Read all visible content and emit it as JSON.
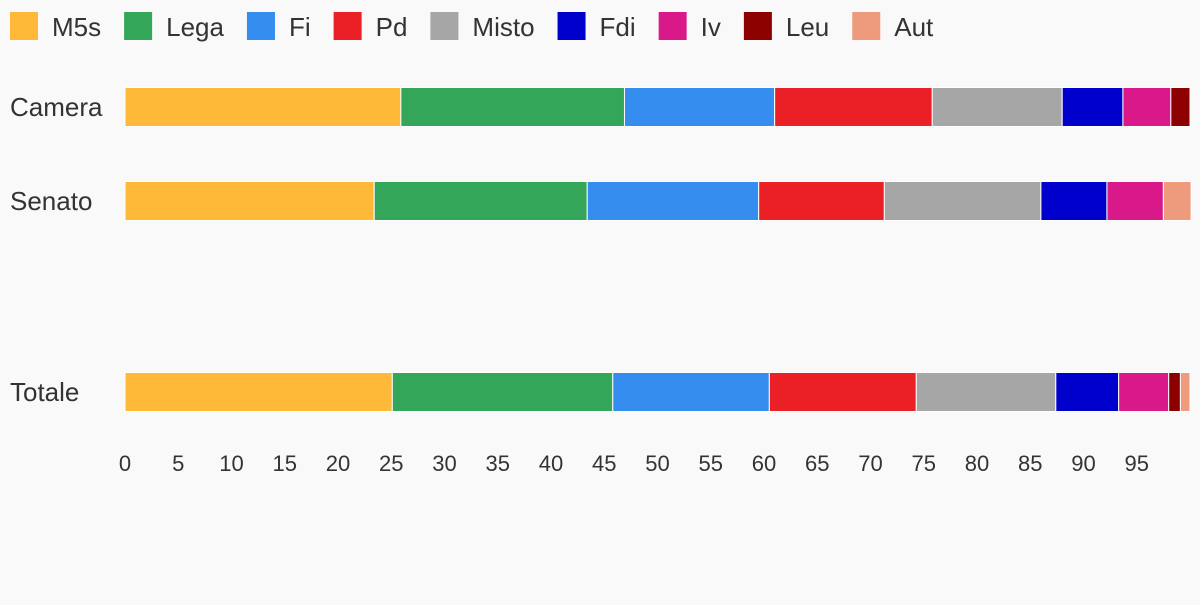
{
  "chart_data": {
    "type": "bar",
    "orientation": "horizontal",
    "stacked": true,
    "title": "",
    "xlabel": "",
    "ylabel": "",
    "categories": [
      "Camera",
      "Senato",
      "",
      "Totale"
    ],
    "xlim": [
      0,
      100
    ],
    "x_ticks": [
      0,
      5,
      10,
      15,
      20,
      25,
      30,
      35,
      40,
      45,
      50,
      55,
      60,
      65,
      70,
      75,
      80,
      85,
      90,
      95
    ],
    "grid": false,
    "legend_position": "top",
    "series": [
      {
        "name": "M5s",
        "color": "#ffb938",
        "values": [
          25.9,
          23.4,
          null,
          25.1
        ]
      },
      {
        "name": "Lega",
        "color": "#33a65a",
        "values": [
          21.0,
          20.0,
          null,
          20.7
        ]
      },
      {
        "name": "Fi",
        "color": "#358df0",
        "values": [
          14.1,
          16.1,
          null,
          14.7
        ]
      },
      {
        "name": "Pd",
        "color": "#eb1f26",
        "values": [
          14.8,
          11.8,
          null,
          13.8
        ]
      },
      {
        "name": "Misto",
        "color": "#a6a6a6",
        "values": [
          12.2,
          14.7,
          null,
          13.1
        ]
      },
      {
        "name": "Fdi",
        "color": "#0000cc",
        "values": [
          5.7,
          6.2,
          null,
          5.9
        ]
      },
      {
        "name": "Iv",
        "color": "#d9188a",
        "values": [
          4.5,
          5.3,
          null,
          4.7
        ]
      },
      {
        "name": "Leu",
        "color": "#8c0000",
        "values": [
          1.8,
          0,
          null,
          1.1
        ]
      },
      {
        "name": "Aut",
        "color": "#ed9a7d",
        "values": [
          0,
          2.6,
          null,
          0.9
        ]
      }
    ]
  }
}
